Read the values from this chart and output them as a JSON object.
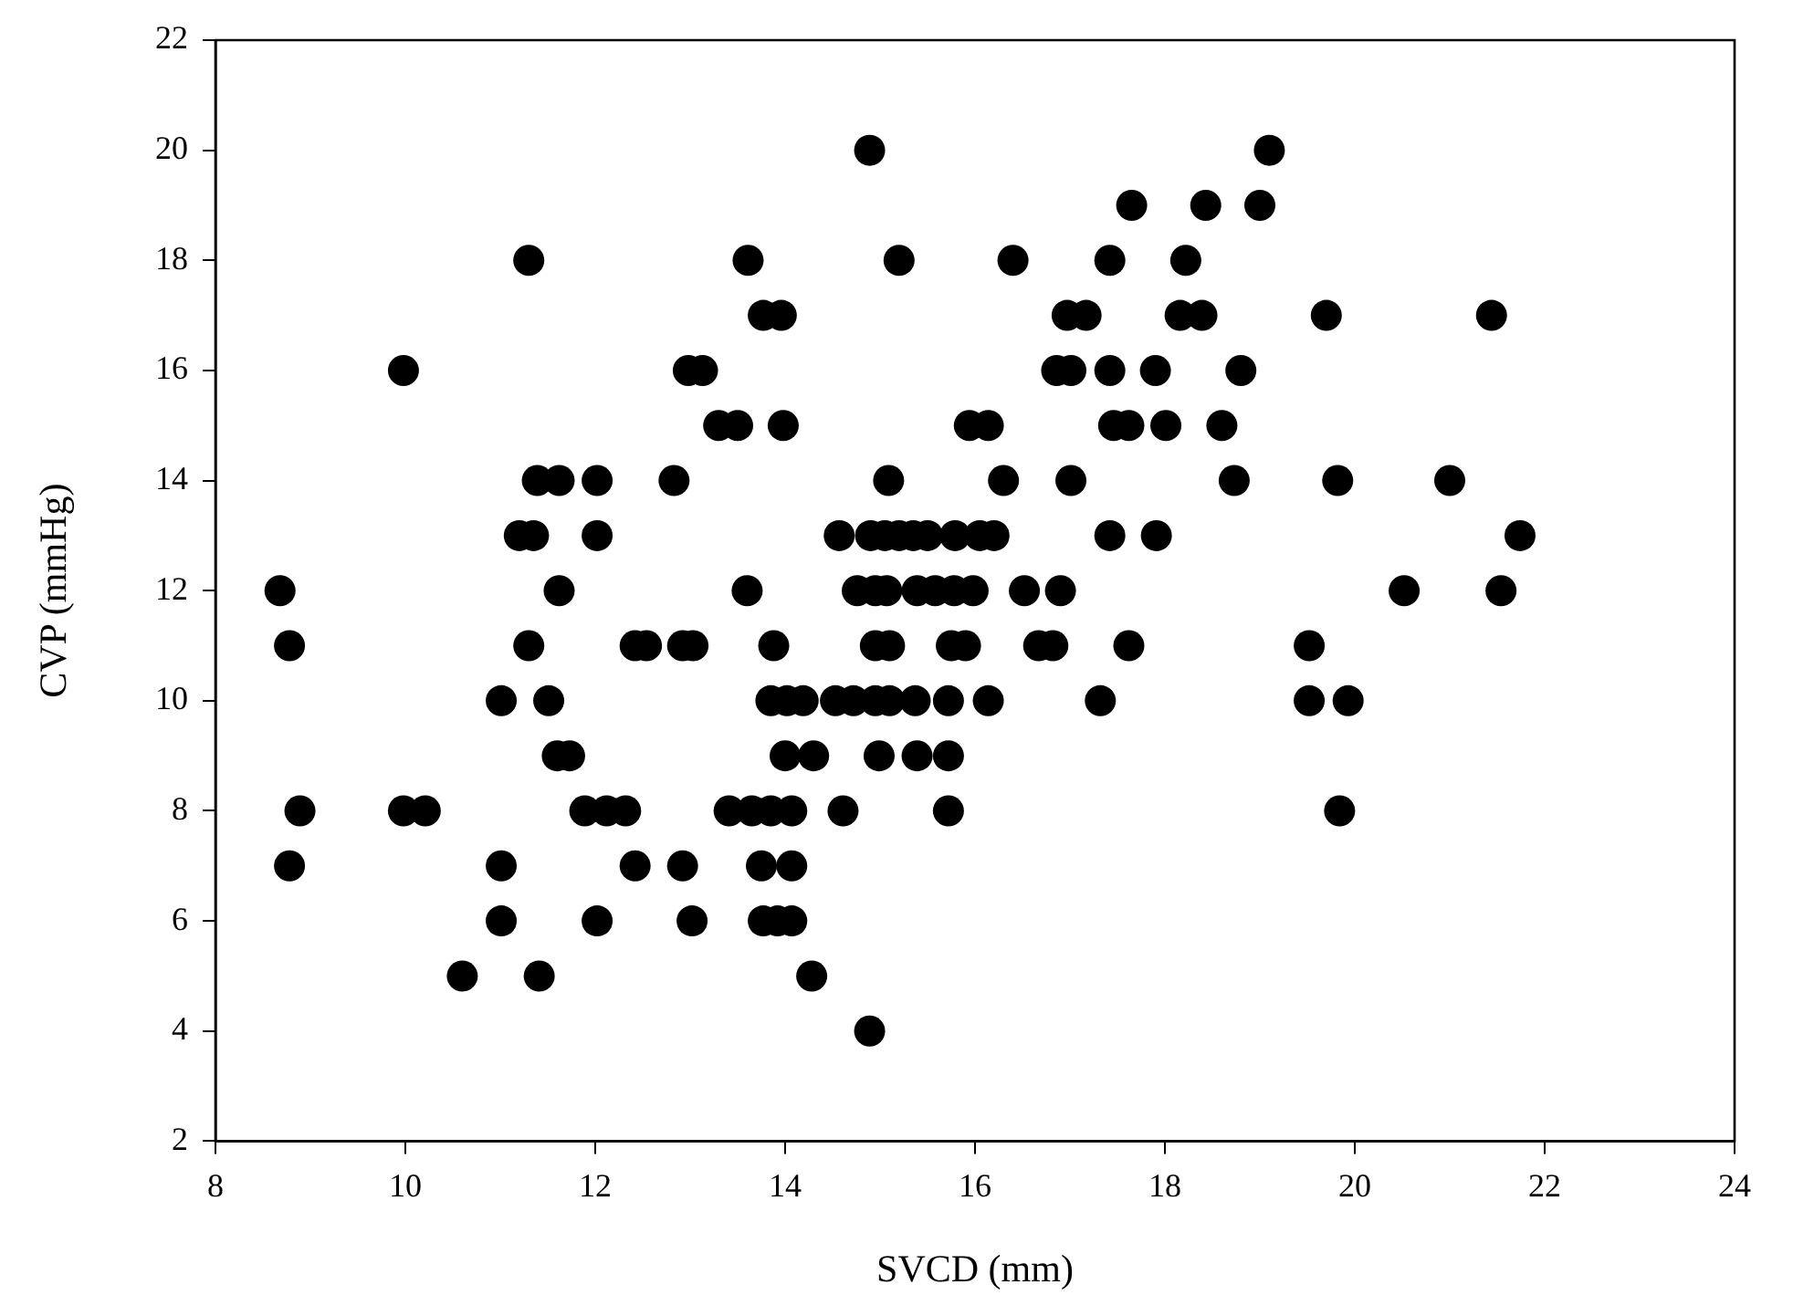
{
  "chart_data": {
    "type": "scatter",
    "xlabel": "SVCD (mm)",
    "ylabel": "CVP (mmHg)",
    "xlim": [
      8,
      24
    ],
    "xticks": [
      8,
      10,
      12,
      14,
      16,
      18,
      20,
      22,
      24
    ],
    "ylim": [
      2,
      22
    ],
    "yticks": [
      2,
      4,
      6,
      8,
      10,
      12,
      14,
      16,
      18,
      20,
      22
    ],
    "grid": false,
    "legend": false,
    "marker": "circle",
    "series": [
      {
        "color": "#000000",
        "x": [
          14.89,
          19.1,
          17.65,
          18.43,
          19.0,
          11.3,
          13.61,
          15.2,
          16.4,
          17.42,
          18.22,
          13.77,
          13.96,
          16.97,
          17.17,
          18.16,
          18.39,
          19.7,
          21.44,
          9.98,
          12.98,
          13.13,
          16.86,
          17.01,
          17.42,
          17.9,
          18.8,
          13.3,
          13.5,
          13.98,
          15.94,
          16.14,
          17.46,
          17.62,
          18.01,
          18.6,
          11.39,
          11.62,
          12.02,
          12.83,
          15.09,
          16.3,
          17.01,
          18.73,
          19.82,
          21.0,
          11.2,
          11.35,
          12.02,
          14.57,
          14.9,
          15.05,
          15.2,
          15.35,
          15.5,
          15.79,
          16.05,
          16.2,
          17.42,
          17.91,
          21.74,
          8.68,
          11.62,
          13.6,
          14.76,
          14.95,
          15.07,
          15.39,
          15.58,
          15.78,
          15.98,
          16.52,
          16.9,
          20.52,
          21.54,
          8.78,
          11.3,
          12.42,
          12.54,
          12.92,
          13.03,
          13.88,
          14.95,
          15.1,
          15.75,
          15.9,
          16.67,
          16.82,
          17.62,
          19.52,
          11.01,
          11.51,
          13.85,
          14.02,
          14.19,
          14.53,
          14.72,
          14.95,
          15.1,
          15.37,
          15.72,
          16.14,
          17.32,
          19.52,
          19.93,
          11.6,
          11.73,
          14.0,
          14.3,
          14.99,
          15.39,
          15.72,
          8.89,
          9.98,
          10.21,
          11.89,
          12.12,
          12.32,
          13.41,
          13.65,
          13.85,
          14.07,
          14.61,
          15.72,
          19.84,
          8.78,
          11.01,
          12.42,
          12.92,
          13.75,
          14.07,
          11.01,
          12.02,
          13.02,
          13.77,
          13.92,
          14.07,
          10.6,
          11.41,
          14.28,
          14.89
        ],
        "values": [
          20,
          20,
          19,
          19,
          19,
          18,
          18,
          18,
          18,
          18,
          18,
          17,
          17,
          17,
          17,
          17,
          17,
          17,
          17,
          16,
          16,
          16,
          16,
          16,
          16,
          16,
          16,
          15,
          15,
          15,
          15,
          15,
          15,
          15,
          15,
          15,
          14,
          14,
          14,
          14,
          14,
          14,
          14,
          14,
          14,
          14,
          13,
          13,
          13,
          13,
          13,
          13,
          13,
          13,
          13,
          13,
          13,
          13,
          13,
          13,
          13,
          12,
          12,
          12,
          12,
          12,
          12,
          12,
          12,
          12,
          12,
          12,
          12,
          12,
          12,
          11,
          11,
          11,
          11,
          11,
          11,
          11,
          11,
          11,
          11,
          11,
          11,
          11,
          11,
          11,
          10,
          10,
          10,
          10,
          10,
          10,
          10,
          10,
          10,
          10,
          10,
          10,
          10,
          10,
          10,
          9,
          9,
          9,
          9,
          9,
          9,
          9,
          8,
          8,
          8,
          8,
          8,
          8,
          8,
          8,
          8,
          8,
          8,
          8,
          8,
          7,
          7,
          7,
          7,
          7,
          7,
          6,
          6,
          6,
          6,
          6,
          6,
          5,
          5,
          5,
          4
        ]
      }
    ]
  }
}
